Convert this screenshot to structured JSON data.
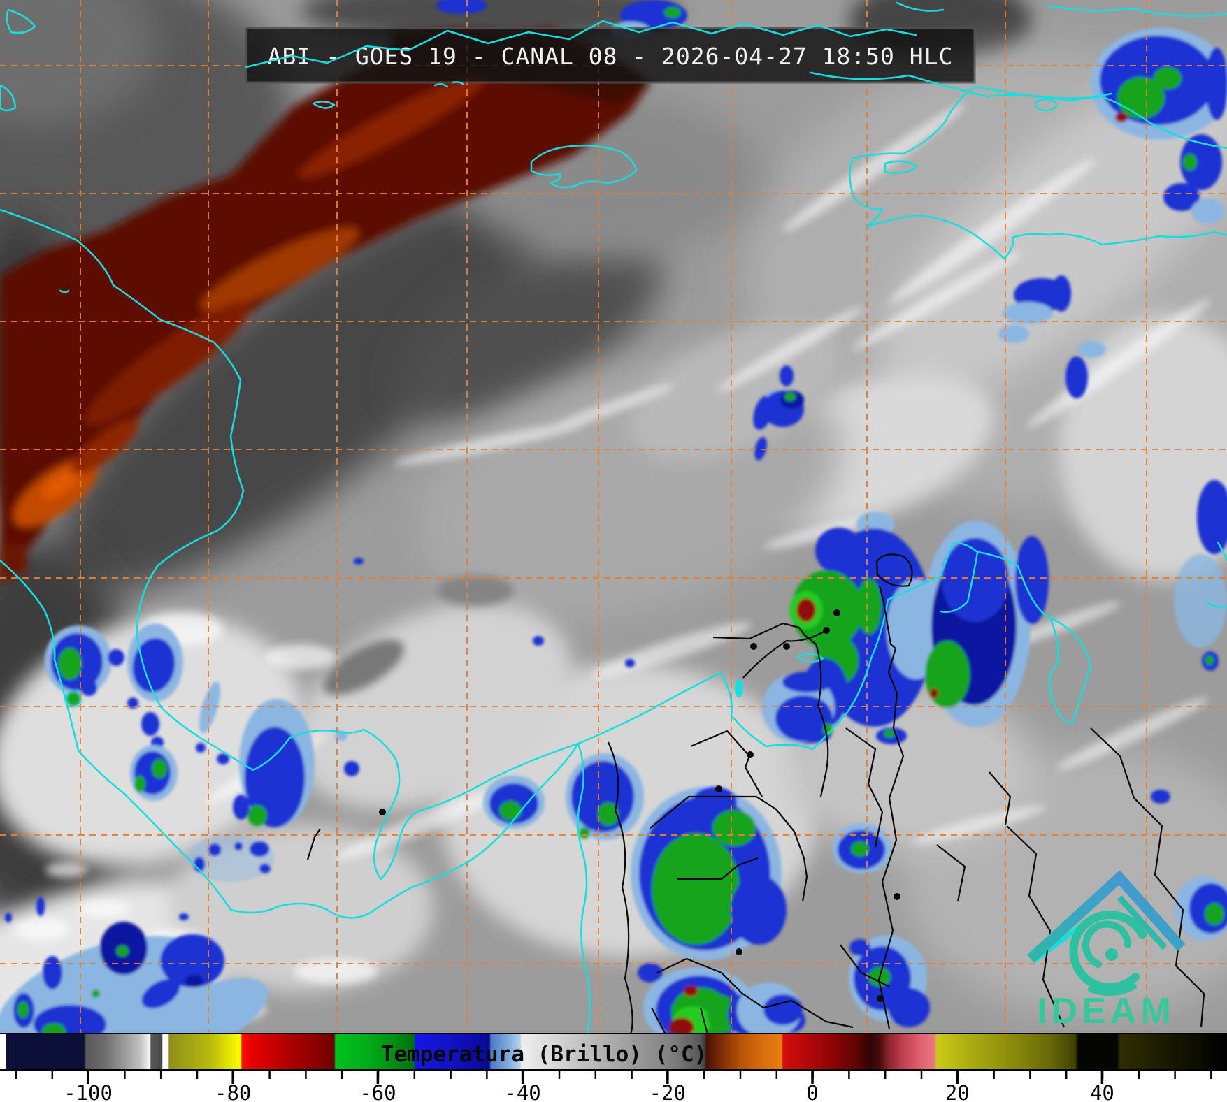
{
  "header": {
    "title": "ABI - GOES 19 - CANAL 08 - 2026-04-27 18:50 HLC",
    "instrument": "ABI",
    "satellite": "GOES 19",
    "channel": "CANAL 08",
    "datetime": "2026-04-27 18:50",
    "time_label": "HLC"
  },
  "colorbar": {
    "label": "Temperatura (Brillo) (°C)",
    "unit": "°C",
    "ticks": [
      "-100",
      "-80",
      "-60",
      "-40",
      "-20",
      "0",
      "20",
      "40"
    ]
  },
  "logo": {
    "text": "IDEAM"
  },
  "colors": {
    "graticule": "#e87e2e",
    "coastline": "#17dede",
    "admin_border": "#0a0a0a",
    "precip_light_blue": "#8cb6e2",
    "precip_blue": "#1a32d2",
    "precip_dark_blue": "#0a14a0",
    "precip_green": "#12a41c",
    "precip_bright_green": "#22cc24",
    "precip_red": "#8f1010",
    "warm_dry_band": "#5c0f04",
    "warm_dry_streak": "#c24a00",
    "title_bar_bg": "#141414",
    "title_text": "#f2f2f2",
    "logo_teal": "#2dc0a1",
    "logo_blue": "#4a90d8",
    "logo_text": "#38c79a"
  }
}
